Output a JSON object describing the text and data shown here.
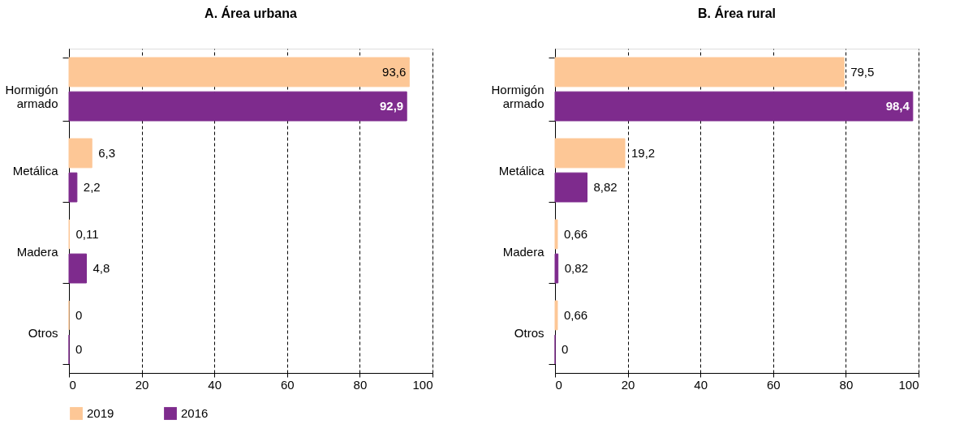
{
  "chart_data": [
    {
      "type": "bar",
      "orientation": "horizontal",
      "title": "A. Área urbana",
      "categories": [
        "Hormigón armado",
        "Metálica",
        "Madera",
        "Otros"
      ],
      "xlim": [
        0,
        100
      ],
      "xticks": [
        0,
        20,
        40,
        60,
        80,
        100
      ],
      "grid": "x",
      "legend": "bottom",
      "series": [
        {
          "name": "2019",
          "color": "#fdc796",
          "values": [
            93.6,
            6.3,
            0.11,
            0
          ],
          "value_labels": [
            "93,6",
            "6,3",
            "0,11",
            "0"
          ]
        },
        {
          "name": "2016",
          "color": "#7e2b8d",
          "values": [
            92.9,
            2.2,
            4.8,
            0
          ],
          "value_labels": [
            "92,9",
            "2,2",
            "4,8",
            "0"
          ]
        }
      ]
    },
    {
      "type": "bar",
      "orientation": "horizontal",
      "title": "B. Área rural",
      "categories": [
        "Hormigón armado",
        "Metálica",
        "Madera",
        "Otros"
      ],
      "xlim": [
        0,
        100
      ],
      "xticks": [
        0,
        20,
        40,
        60,
        80,
        100
      ],
      "grid": "x",
      "legend": "bottom",
      "series": [
        {
          "name": "2019",
          "color": "#fdc796",
          "values": [
            79.5,
            19.2,
            0.66,
            0.66
          ],
          "value_labels": [
            "79,5",
            "19,2",
            "0,66",
            "0,66"
          ]
        },
        {
          "name": "2016",
          "color": "#7e2b8d",
          "values": [
            98.4,
            8.82,
            0.82,
            0
          ],
          "value_labels": [
            "98,4",
            "8,82",
            "0,82",
            "0"
          ]
        }
      ]
    }
  ]
}
